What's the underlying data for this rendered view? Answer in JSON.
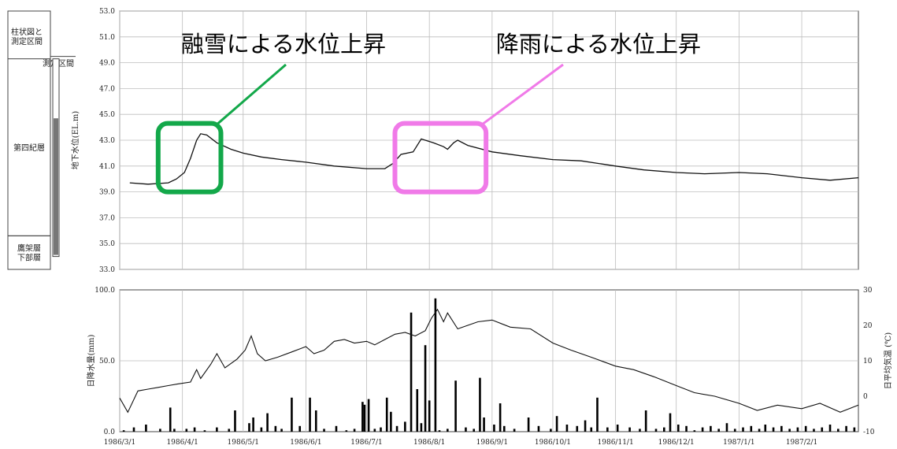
{
  "column": {
    "header": "柱状図と\n測定区間",
    "interval_label": "測定区間",
    "layers": [
      {
        "name": "第四紀層",
        "top_elev": 49.3,
        "bottom_elev": 35.6
      },
      {
        "name": "鷹架層\n下部層",
        "top_elev": 35.6,
        "bottom_elev": 33.0
      }
    ],
    "screen_interval": {
      "top_elev": 48.6,
      "bottom_elev": 34.0
    },
    "casing_top_elev": 49.3
  },
  "annotations": [
    {
      "text": "融雪による水位上昇",
      "color": "#13a84a",
      "box_x": [
        "1986-03-20",
        "1986-04-20"
      ],
      "box_y": [
        39.0,
        44.3
      ]
    },
    {
      "text": "降雨による水位上昇",
      "color": "#f07ae8",
      "box_x": [
        "1986-07-15",
        "1986-08-29"
      ],
      "box_y": [
        39.0,
        44.3
      ]
    }
  ],
  "chart_data": [
    {
      "type": "line",
      "ylabel": "地下水位(EL.m)",
      "ylim": [
        33.0,
        53.0
      ],
      "yticks": [
        "33.0",
        "35.0",
        "37.0",
        "39.0",
        "41.0",
        "43.0",
        "45.0",
        "47.0",
        "49.0",
        "51.0",
        "53.0"
      ],
      "x_range": [
        "1986-03-01",
        "1987-03-01"
      ],
      "grid": true,
      "series": [
        {
          "values": [
            [
              "1986-03-06",
              39.7
            ],
            [
              "1986-03-15",
              39.6
            ],
            [
              "1986-03-25",
              39.7
            ],
            [
              "1986-03-29",
              40.0
            ],
            [
              "1986-04-02",
              40.5
            ],
            [
              "1986-04-05",
              41.6
            ],
            [
              "1986-04-08",
              43.0
            ],
            [
              "1986-04-10",
              43.5
            ],
            [
              "1986-04-13",
              43.4
            ],
            [
              "1986-04-18",
              42.8
            ],
            [
              "1986-04-25",
              42.3
            ],
            [
              "1986-05-01",
              42.0
            ],
            [
              "1986-05-10",
              41.7
            ],
            [
              "1986-05-20",
              41.5
            ],
            [
              "1986-06-01",
              41.3
            ],
            [
              "1986-06-15",
              41.0
            ],
            [
              "1986-07-01",
              40.8
            ],
            [
              "1986-07-10",
              40.8
            ],
            [
              "1986-07-14",
              41.2
            ],
            [
              "1986-07-18",
              41.9
            ],
            [
              "1986-07-24",
              42.1
            ],
            [
              "1986-07-28",
              43.1
            ],
            [
              "1986-08-03",
              42.8
            ],
            [
              "1986-08-08",
              42.5
            ],
            [
              "1986-08-10",
              42.3
            ],
            [
              "1986-08-13",
              42.8
            ],
            [
              "1986-08-15",
              43.0
            ],
            [
              "1986-08-20",
              42.6
            ],
            [
              "1986-09-01",
              42.1
            ],
            [
              "1986-09-15",
              41.8
            ],
            [
              "1986-10-01",
              41.5
            ],
            [
              "1986-10-15",
              41.4
            ],
            [
              "1986-11-01",
              41.0
            ],
            [
              "1986-11-15",
              40.7
            ],
            [
              "1986-12-01",
              40.5
            ],
            [
              "1986-12-15",
              40.4
            ],
            [
              "1987-01-01",
              40.5
            ],
            [
              "1987-01-15",
              40.4
            ],
            [
              "1987-02-01",
              40.1
            ],
            [
              "1987-02-15",
              39.9
            ],
            [
              "1987-03-01",
              40.1
            ]
          ]
        }
      ]
    },
    {
      "type": "bar",
      "ylabel": "日降水量(mm)",
      "ylim": [
        0.0,
        100.0
      ],
      "yticks": [
        "0.0",
        "50.0",
        "100.0"
      ],
      "y2label": "日平均気温 (℃)",
      "y2lim": [
        -10,
        30
      ],
      "y2ticks": [
        "-10",
        "0",
        "10",
        "20",
        "30"
      ],
      "xticks": [
        "1986/3/1",
        "1986/4/1",
        "1986/5/1",
        "1986/6/1",
        "1986/7/1",
        "1986/8/1",
        "1986/9/1",
        "1986/10/1",
        "1986/11/1",
        "1986/12/1",
        "1987/1/1",
        "1987/2/1"
      ],
      "x_range": [
        "1986-03-01",
        "1987-03-01"
      ],
      "grid": true,
      "precipitation": [
        [
          "1986-03-03",
          1
        ],
        [
          "1986-03-08",
          3
        ],
        [
          "1986-03-14",
          5
        ],
        [
          "1986-03-21",
          2
        ],
        [
          "1986-03-26",
          17
        ],
        [
          "1986-03-28",
          2
        ],
        [
          "1986-04-03",
          2
        ],
        [
          "1986-04-07",
          3
        ],
        [
          "1986-04-12",
          1
        ],
        [
          "1986-04-18",
          3
        ],
        [
          "1986-04-24",
          2
        ],
        [
          "1986-04-27",
          15
        ],
        [
          "1986-05-04",
          6
        ],
        [
          "1986-05-06",
          10
        ],
        [
          "1986-05-10",
          3
        ],
        [
          "1986-05-13",
          13
        ],
        [
          "1986-05-17",
          4
        ],
        [
          "1986-05-20",
          2
        ],
        [
          "1986-05-25",
          24
        ],
        [
          "1986-05-29",
          4
        ],
        [
          "1986-06-03",
          24
        ],
        [
          "1986-06-06",
          15
        ],
        [
          "1986-06-10",
          2
        ],
        [
          "1986-06-16",
          4
        ],
        [
          "1986-06-21",
          1
        ],
        [
          "1986-06-25",
          2
        ],
        [
          "1986-06-29",
          21
        ],
        [
          "1986-06-30",
          19
        ],
        [
          "1986-07-02",
          23
        ],
        [
          "1986-07-05",
          2
        ],
        [
          "1986-07-08",
          3
        ],
        [
          "1986-07-11",
          24
        ],
        [
          "1986-07-13",
          14
        ],
        [
          "1986-07-16",
          4
        ],
        [
          "1986-07-20",
          7
        ],
        [
          "1986-07-23",
          84
        ],
        [
          "1986-07-26",
          30
        ],
        [
          "1986-07-28",
          6
        ],
        [
          "1986-07-30",
          61
        ],
        [
          "1986-08-01",
          22
        ],
        [
          "1986-08-04",
          94
        ],
        [
          "1986-08-06",
          1
        ],
        [
          "1986-08-10",
          2
        ],
        [
          "1986-08-14",
          36
        ],
        [
          "1986-08-19",
          3
        ],
        [
          "1986-08-23",
          2
        ],
        [
          "1986-08-26",
          38
        ],
        [
          "1986-08-28",
          10
        ],
        [
          "1986-09-02",
          5
        ],
        [
          "1986-09-05",
          20
        ],
        [
          "1986-09-07",
          4
        ],
        [
          "1986-09-12",
          2
        ],
        [
          "1986-09-19",
          10
        ],
        [
          "1986-09-24",
          4
        ],
        [
          "1986-09-30",
          2
        ],
        [
          "1986-10-03",
          11
        ],
        [
          "1986-10-08",
          5
        ],
        [
          "1986-10-13",
          4
        ],
        [
          "1986-10-17",
          8
        ],
        [
          "1986-10-20",
          3
        ],
        [
          "1986-10-23",
          24
        ],
        [
          "1986-10-28",
          3
        ],
        [
          "1986-11-02",
          5
        ],
        [
          "1986-11-08",
          3
        ],
        [
          "1986-11-13",
          2
        ],
        [
          "1986-11-16",
          15
        ],
        [
          "1986-11-21",
          2
        ],
        [
          "1986-11-25",
          3
        ],
        [
          "1986-11-28",
          13
        ],
        [
          "1986-12-02",
          5
        ],
        [
          "1986-12-06",
          4
        ],
        [
          "1986-12-10",
          1
        ],
        [
          "1986-12-14",
          3
        ],
        [
          "1986-12-18",
          4
        ],
        [
          "1986-12-22",
          2
        ],
        [
          "1986-12-26",
          6
        ],
        [
          "1986-12-30",
          2
        ],
        [
          "1987-01-03",
          3
        ],
        [
          "1987-01-07",
          4
        ],
        [
          "1987-01-11",
          2
        ],
        [
          "1987-01-14",
          5
        ],
        [
          "1987-01-18",
          3
        ],
        [
          "1987-01-22",
          4
        ],
        [
          "1987-01-26",
          2
        ],
        [
          "1987-01-30",
          3
        ],
        [
          "1987-02-03",
          4
        ],
        [
          "1987-02-07",
          2
        ],
        [
          "1987-02-11",
          3
        ],
        [
          "1987-02-15",
          5
        ],
        [
          "1987-02-19",
          2
        ],
        [
          "1987-02-23",
          4
        ],
        [
          "1987-02-27",
          3
        ]
      ],
      "temperature": [
        [
          "1986-03-01",
          -0.5
        ],
        [
          "1986-03-05",
          -4.5
        ],
        [
          "1986-03-10",
          1.5
        ],
        [
          "1986-03-15",
          2.0
        ],
        [
          "1986-03-20",
          2.5
        ],
        [
          "1986-03-25",
          3.0
        ],
        [
          "1986-03-30",
          3.5
        ],
        [
          "1986-04-05",
          4.0
        ],
        [
          "1986-04-08",
          7.5
        ],
        [
          "1986-04-10",
          5.0
        ],
        [
          "1986-04-15",
          9.0
        ],
        [
          "1986-04-18",
          12.0
        ],
        [
          "1986-04-22",
          8.0
        ],
        [
          "1986-04-28",
          10.5
        ],
        [
          "1986-05-02",
          13.0
        ],
        [
          "1986-05-05",
          17.0
        ],
        [
          "1986-05-08",
          12.0
        ],
        [
          "1986-05-12",
          10.0
        ],
        [
          "1986-05-18",
          11.0
        ],
        [
          "1986-05-25",
          12.5
        ],
        [
          "1986-06-01",
          14.0
        ],
        [
          "1986-06-05",
          12.0
        ],
        [
          "1986-06-10",
          13.0
        ],
        [
          "1986-06-15",
          15.5
        ],
        [
          "1986-06-20",
          16.0
        ],
        [
          "1986-06-25",
          15.0
        ],
        [
          "1986-07-01",
          15.5
        ],
        [
          "1986-07-05",
          14.5
        ],
        [
          "1986-07-10",
          16.0
        ],
        [
          "1986-07-15",
          17.5
        ],
        [
          "1986-07-20",
          18.0
        ],
        [
          "1986-07-25",
          17.0
        ],
        [
          "1986-07-30",
          18.5
        ],
        [
          "1986-08-02",
          22.0
        ],
        [
          "1986-08-05",
          24.5
        ],
        [
          "1986-08-08",
          21.0
        ],
        [
          "1986-08-10",
          23.5
        ],
        [
          "1986-08-15",
          19.0
        ],
        [
          "1986-08-20",
          20.0
        ],
        [
          "1986-08-25",
          21.0
        ],
        [
          "1986-09-01",
          21.5
        ],
        [
          "1986-09-10",
          19.5
        ],
        [
          "1986-09-20",
          19.0
        ],
        [
          "1986-10-01",
          15.0
        ],
        [
          "1986-10-10",
          13.0
        ],
        [
          "1986-10-20",
          11.0
        ],
        [
          "1986-11-01",
          8.5
        ],
        [
          "1986-11-10",
          7.5
        ],
        [
          "1986-11-20",
          5.5
        ],
        [
          "1986-12-01",
          3.0
        ],
        [
          "1986-12-10",
          1.0
        ],
        [
          "1986-12-20",
          0.0
        ],
        [
          "1987-01-01",
          -2.0
        ],
        [
          "1987-01-10",
          -4.0
        ],
        [
          "1987-01-20",
          -2.5
        ],
        [
          "1987-02-01",
          -3.5
        ],
        [
          "1987-02-10",
          -2.0
        ],
        [
          "1987-02-20",
          -4.5
        ],
        [
          "1987-03-01",
          -2.5
        ]
      ]
    }
  ]
}
